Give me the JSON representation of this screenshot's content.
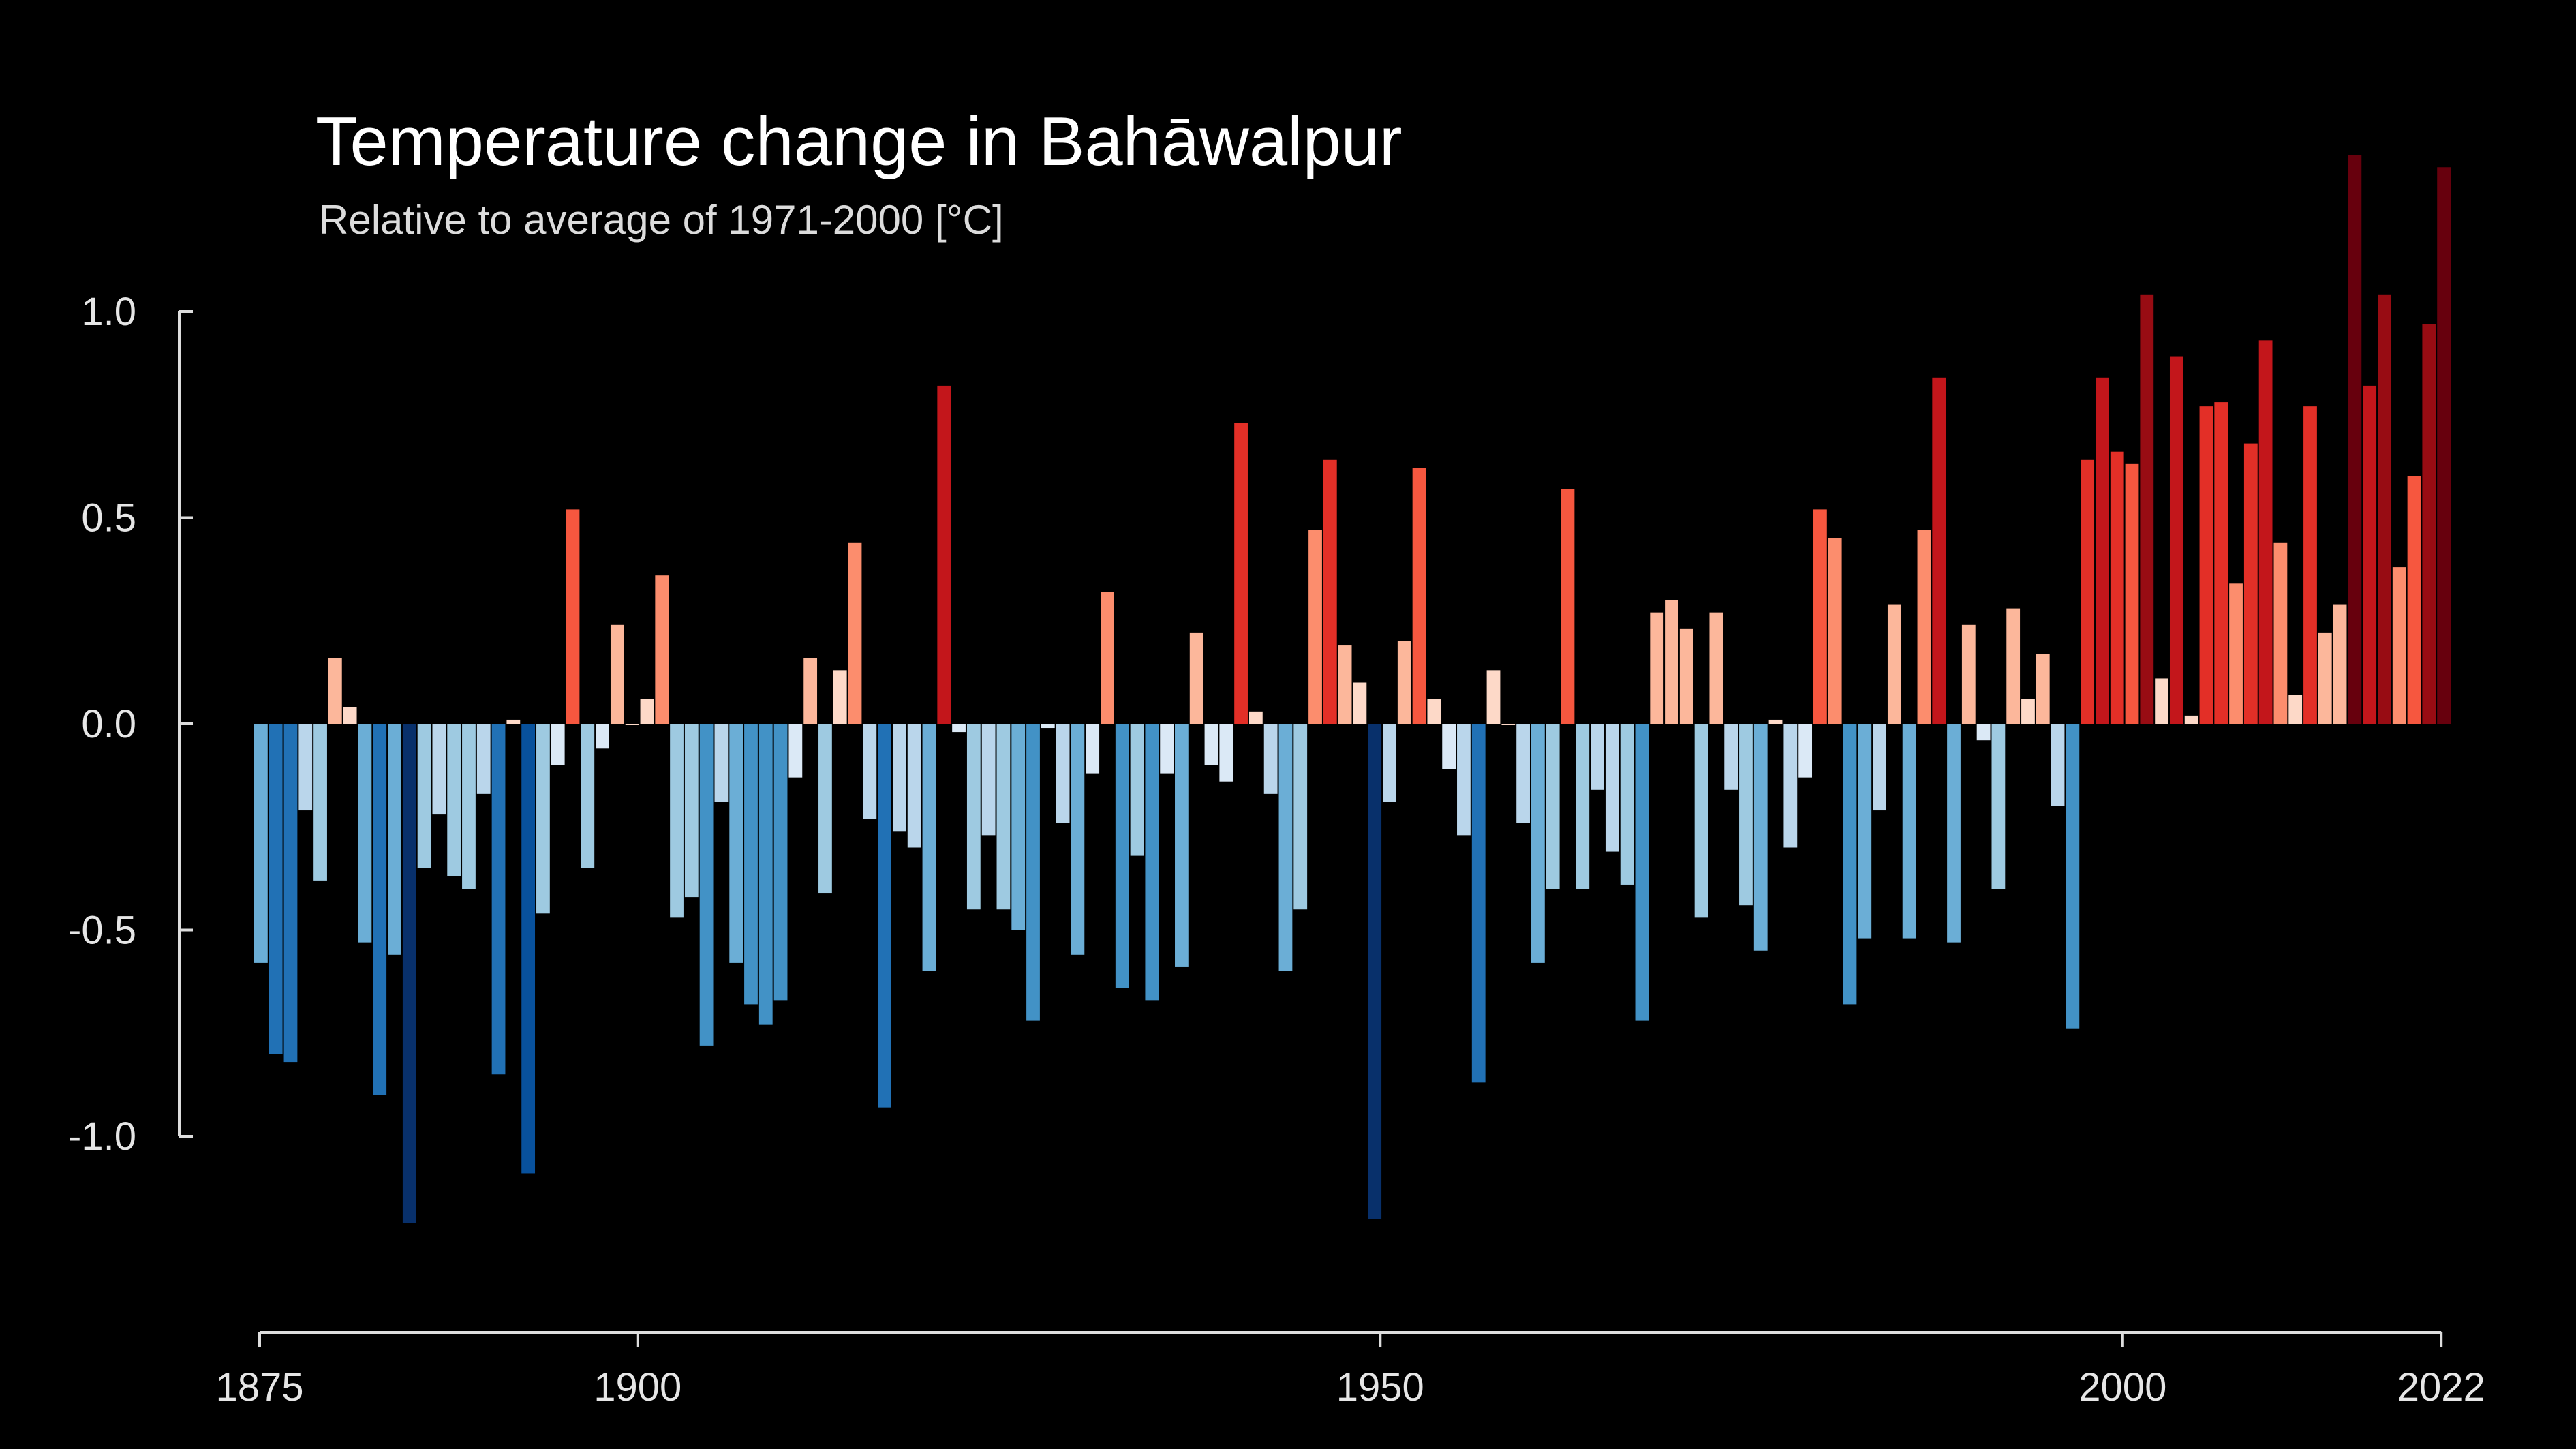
{
  "title": "Temperature change in Bahāwalpur",
  "subtitle": "Relative to average of 1971-2000  [°C]",
  "colors": {
    "background": "#000000",
    "axis": "#dddddd",
    "text": "#e6e6e6",
    "warm_scale": [
      "#fdd9c8",
      "#fcb79b",
      "#fc8d6d",
      "#f6573f",
      "#e32f27",
      "#c3161b",
      "#980c13",
      "#67000d"
    ],
    "cool_scale": [
      "#dbe9f6",
      "#bad6eb",
      "#9ecae1",
      "#6baed6",
      "#4292c6",
      "#2171b5",
      "#08519c",
      "#08306b"
    ]
  },
  "chart_data": {
    "type": "bar",
    "ylim": [
      -1.35,
      1.5
    ],
    "yticks": [
      -1.0,
      -0.5,
      0.0,
      0.5,
      1.0
    ],
    "ytick_labels": [
      "-1.0",
      "-0.5",
      "0.0",
      "0.5",
      "1.0"
    ],
    "xlim": [
      1875,
      2022
    ],
    "xticks": [
      1875,
      1900,
      1950,
      2000,
      2022
    ],
    "xtick_labels": [
      "1875",
      "1900",
      "1950",
      "2000",
      "2022"
    ],
    "grid": false,
    "x": [
      1875,
      1876,
      1877,
      1878,
      1879,
      1880,
      1881,
      1882,
      1883,
      1884,
      1885,
      1886,
      1887,
      1888,
      1889,
      1890,
      1891,
      1892,
      1893,
      1894,
      1895,
      1896,
      1897,
      1898,
      1899,
      1900,
      1901,
      1902,
      1903,
      1904,
      1905,
      1906,
      1907,
      1908,
      1909,
      1910,
      1911,
      1912,
      1913,
      1914,
      1915,
      1916,
      1917,
      1918,
      1919,
      1920,
      1921,
      1922,
      1923,
      1924,
      1925,
      1926,
      1927,
      1928,
      1929,
      1930,
      1931,
      1932,
      1933,
      1934,
      1935,
      1936,
      1937,
      1938,
      1939,
      1940,
      1941,
      1942,
      1943,
      1944,
      1945,
      1946,
      1947,
      1948,
      1949,
      1950,
      1951,
      1952,
      1953,
      1954,
      1955,
      1956,
      1957,
      1958,
      1959,
      1960,
      1961,
      1962,
      1963,
      1964,
      1965,
      1966,
      1967,
      1968,
      1969,
      1970,
      1971,
      1972,
      1973,
      1974,
      1975,
      1976,
      1977,
      1978,
      1979,
      1980,
      1981,
      1982,
      1983,
      1984,
      1985,
      1986,
      1987,
      1988,
      1989,
      1990,
      1991,
      1992,
      1993,
      1994,
      1995,
      1996,
      1997,
      1998,
      1999,
      2000,
      2001,
      2002,
      2003,
      2004,
      2005,
      2006,
      2007,
      2008,
      2009,
      2010,
      2011,
      2012,
      2013,
      2014,
      2015,
      2016,
      2017,
      2018,
      2019,
      2020,
      2021,
      2022
    ],
    "values": [
      -0.58,
      -0.8,
      -0.82,
      -0.21,
      -0.38,
      0.16,
      0.04,
      -0.53,
      -0.9,
      -0.56,
      -1.21,
      -0.35,
      -0.22,
      -0.37,
      -0.4,
      -0.17,
      -0.85,
      0.01,
      -1.09,
      -0.46,
      -0.1,
      0.52,
      -0.35,
      -0.06,
      0.24,
      0.0,
      0.06,
      0.36,
      -0.47,
      -0.42,
      -0.78,
      -0.19,
      -0.58,
      -0.68,
      -0.73,
      -0.67,
      -0.13,
      0.16,
      -0.41,
      0.13,
      0.44,
      -0.23,
      -0.93,
      -0.26,
      -0.3,
      -0.6,
      0.82,
      -0.02,
      -0.45,
      -0.27,
      -0.45,
      -0.5,
      -0.72,
      -0.01,
      -0.24,
      -0.56,
      -0.12,
      0.32,
      -0.64,
      -0.32,
      -0.67,
      -0.12,
      -0.59,
      0.22,
      -0.1,
      -0.14,
      0.73,
      0.03,
      -0.17,
      -0.6,
      -0.45,
      0.47,
      0.64,
      0.19,
      0.1,
      -1.2,
      -0.19,
      0.2,
      0.62,
      0.06,
      -0.11,
      -0.27,
      -0.87,
      0.13,
      0.0,
      -0.24,
      -0.58,
      -0.4,
      0.57,
      -0.4,
      -0.16,
      -0.31,
      -0.39,
      -0.72,
      0.27,
      0.3,
      0.23,
      -0.47,
      0.27,
      -0.16,
      -0.44,
      -0.55,
      0.01,
      -0.3,
      -0.13,
      0.52,
      0.45,
      -0.68,
      -0.52,
      -0.21,
      0.29,
      -0.52,
      0.47,
      0.84,
      -0.53,
      0.24,
      -0.04,
      -0.4,
      0.28,
      0.06,
      0.17,
      -0.2,
      -0.74,
      0.64,
      0.84,
      0.66,
      0.63,
      1.04,
      0.11,
      0.89,
      0.02,
      0.77,
      0.78,
      0.34,
      0.68,
      0.93,
      0.44,
      0.07,
      0.77,
      0.22,
      0.29,
      1.38,
      0.82,
      1.04,
      0.38,
      0.6,
      0.97,
      1.35
    ]
  }
}
